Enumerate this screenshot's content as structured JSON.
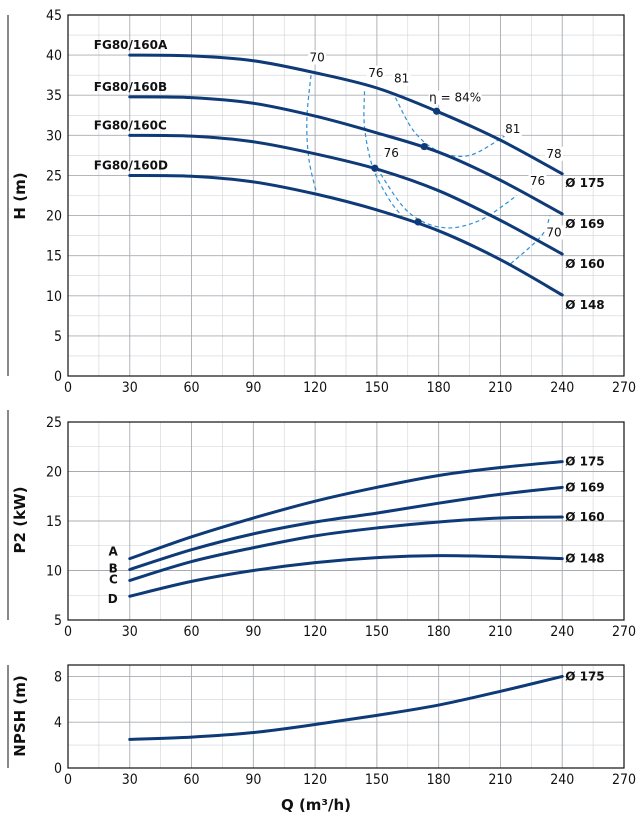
{
  "chart_data": [
    {
      "type": "line",
      "id": "H",
      "ylabel": "H (m)",
      "xlim": [
        0,
        270
      ],
      "ylim": [
        0,
        45
      ],
      "xticks": [
        0,
        30,
        60,
        90,
        120,
        150,
        180,
        210,
        240,
        270
      ],
      "yticks": [
        0,
        5,
        10,
        15,
        20,
        25,
        30,
        35,
        40,
        45
      ],
      "grid": true,
      "series": [
        {
          "name": "FG80/160A",
          "diameter": "Ø 175",
          "x": [
            30,
            60,
            90,
            120,
            150,
            180,
            210,
            240
          ],
          "y": [
            40,
            39.9,
            39.3,
            37.8,
            35.9,
            32.9,
            29.4,
            25.2
          ]
        },
        {
          "name": "FG80/160B",
          "diameter": "Ø 169",
          "x": [
            30,
            60,
            90,
            120,
            150,
            180,
            210,
            240
          ],
          "y": [
            34.8,
            34.7,
            34.0,
            32.4,
            30.3,
            27.9,
            24.4,
            20.2
          ]
        },
        {
          "name": "FG80/160C",
          "diameter": "Ø 160",
          "x": [
            30,
            60,
            90,
            120,
            150,
            180,
            210,
            240
          ],
          "y": [
            30.0,
            29.9,
            29.2,
            27.7,
            25.8,
            23.1,
            19.4,
            15.2
          ]
        },
        {
          "name": "FG80/160D",
          "diameter": "Ø 148",
          "x": [
            30,
            60,
            90,
            120,
            150,
            180,
            210,
            240
          ],
          "y": [
            25.0,
            24.9,
            24.2,
            22.7,
            20.7,
            18.1,
            14.5,
            10.1
          ]
        }
      ],
      "efficiency_curves": [
        {
          "label": "70",
          "points": [
            [
              118,
              37.5
            ],
            [
              116,
              32
            ],
            [
              117,
              27
            ],
            [
              121,
              22.5
            ]
          ]
        },
        {
          "label": "76",
          "points": [
            [
              144,
              35.5
            ],
            [
              144,
              31
            ],
            [
              148,
              26
            ],
            [
              156,
              22
            ],
            [
              162,
              20
            ]
          ]
        },
        {
          "label": "81",
          "points": [
            [
              159,
              34.7
            ],
            [
              168,
              30.5
            ],
            [
              180,
              28
            ],
            [
              195,
              27.5
            ],
            [
              212,
              29.9
            ]
          ]
        },
        {
          "label": "76",
          "points": [
            [
              150,
              25.9
            ],
            [
              165,
              20.5
            ],
            [
              182,
              18.5
            ],
            [
              200,
              19.4
            ],
            [
              218,
              22.5
            ]
          ]
        },
        {
          "label": "70",
          "points": [
            [
              215,
              14
            ],
            [
              230,
              17.5
            ],
            [
              234,
              20
            ]
          ]
        },
        {
          "label": "78",
          "points": [
            [
              230,
              26
            ]
          ]
        }
      ],
      "efficiency_labels": [
        {
          "text": "70",
          "x": 121,
          "y": 39.2
        },
        {
          "text": "76",
          "x": 149.5,
          "y": 37.3
        },
        {
          "text": "81",
          "x": 162,
          "y": 36.6
        },
        {
          "text": "η = 84%",
          "x": 188,
          "y": 34.2
        },
        {
          "text": "81",
          "x": 216,
          "y": 30.3
        },
        {
          "text": "78",
          "x": 236,
          "y": 27.2
        },
        {
          "text": "76",
          "x": 228,
          "y": 23.8
        },
        {
          "text": "76",
          "x": 157,
          "y": 27.3
        },
        {
          "text": "70",
          "x": 236,
          "y": 17.4
        }
      ],
      "bep_points": [
        {
          "x": 179,
          "y": 33.0
        },
        {
          "x": 173,
          "y": 28.6
        },
        {
          "x": 149,
          "y": 25.9
        },
        {
          "x": 170,
          "y": 19.2
        }
      ]
    },
    {
      "type": "line",
      "id": "P2",
      "ylabel": "P2 (kW)",
      "xlim": [
        0,
        270
      ],
      "ylim": [
        5,
        25
      ],
      "xticks": [
        0,
        30,
        60,
        90,
        120,
        150,
        180,
        210,
        240,
        270
      ],
      "yticks": [
        5,
        10,
        15,
        20,
        25
      ],
      "grid": true,
      "series": [
        {
          "name": "A",
          "diameter": "Ø 175",
          "x": [
            30,
            60,
            90,
            120,
            150,
            180,
            210,
            240
          ],
          "y": [
            11.2,
            13.4,
            15.3,
            17.0,
            18.4,
            19.6,
            20.4,
            21.0
          ]
        },
        {
          "name": "B",
          "diameter": "Ø 169",
          "x": [
            30,
            60,
            90,
            120,
            150,
            180,
            210,
            240
          ],
          "y": [
            10.1,
            12.1,
            13.7,
            14.9,
            15.8,
            16.8,
            17.7,
            18.4
          ]
        },
        {
          "name": "C",
          "diameter": "Ø 160",
          "x": [
            30,
            60,
            90,
            120,
            150,
            180,
            210,
            240
          ],
          "y": [
            9.0,
            10.9,
            12.3,
            13.5,
            14.3,
            14.9,
            15.3,
            15.4
          ]
        },
        {
          "name": "D",
          "diameter": "Ø 148",
          "x": [
            30,
            60,
            90,
            120,
            150,
            180,
            210,
            240
          ],
          "y": [
            7.4,
            8.9,
            10.0,
            10.8,
            11.3,
            11.5,
            11.4,
            11.2
          ]
        }
      ]
    },
    {
      "type": "line",
      "id": "NPSH",
      "ylabel": "NPSH (m)",
      "xlabel": "Q (m³/h)",
      "xlim": [
        0,
        270
      ],
      "ylim": [
        0,
        9
      ],
      "xticks": [
        0,
        30,
        60,
        90,
        120,
        150,
        180,
        210,
        240,
        270
      ],
      "yticks": [
        0,
        4,
        8
      ],
      "grid": true,
      "series": [
        {
          "name": "",
          "diameter": "Ø 175",
          "x": [
            30,
            60,
            90,
            120,
            150,
            180,
            210,
            240
          ],
          "y": [
            2.5,
            2.7,
            3.1,
            3.8,
            4.6,
            5.5,
            6.7,
            8.0
          ]
        }
      ]
    }
  ]
}
